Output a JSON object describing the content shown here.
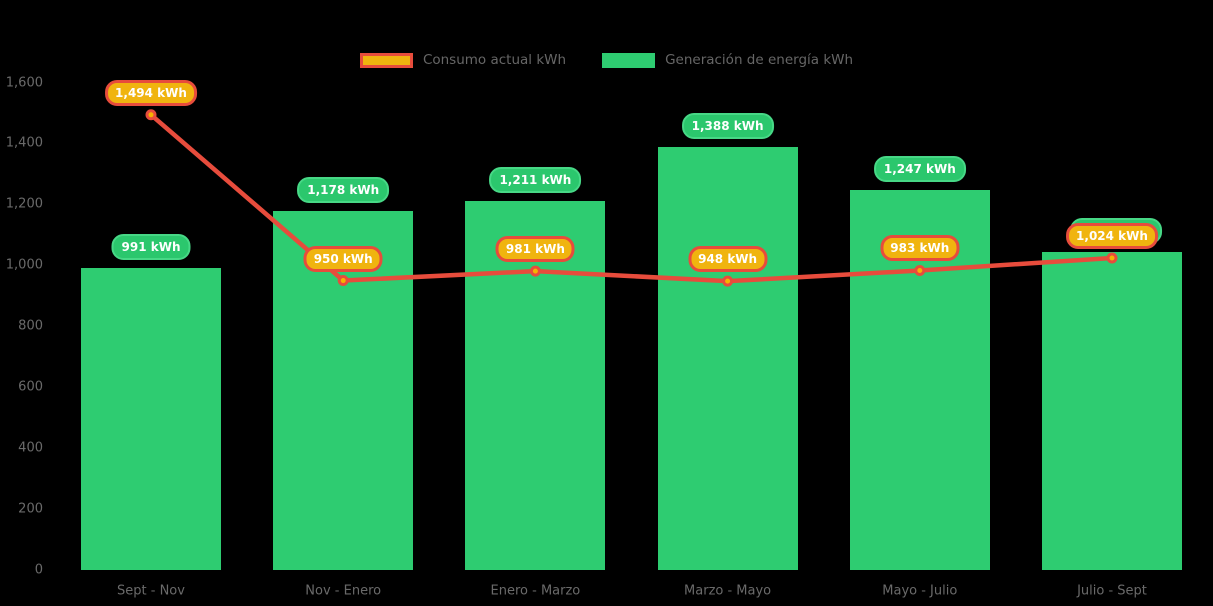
{
  "page": {
    "background": "#000000"
  },
  "chart_data": {
    "type": "combo",
    "title": "",
    "xlabel": "",
    "ylabel": "",
    "categories": [
      "Sept - Nov",
      "Nov - Enero",
      "Enero - Marzo",
      "Marzo - Mayo",
      "Mayo - Julio",
      "Julio - Sept"
    ],
    "series": [
      {
        "name": "Consumo actual kWh",
        "type": "line",
        "color": "#E74C3C",
        "marker_fill": "#F5B301",
        "label_fill": "#F0B40F",
        "label_border": "#E74C3C",
        "values": [
          1494,
          950,
          981,
          948,
          983,
          1024
        ],
        "labels": [
          "1,494 kWh",
          "950 kWh",
          "981 kWh",
          "948 kWh",
          "983 kWh",
          "1,024 kWh"
        ]
      },
      {
        "name": "Generación de energía kWh",
        "type": "bar",
        "color": "#2ECC71",
        "label_fill": "#2BC76D",
        "label_border": "#47D886",
        "values": [
          991,
          1178,
          1211,
          1388,
          1247,
          1044
        ],
        "labels": [
          "991 kWh",
          "1,178 kWh",
          "1,211 kWh",
          "1,388 kWh",
          "1,247 kWh",
          "1,044 kWh"
        ]
      }
    ],
    "ylim": [
      0,
      1600
    ],
    "ytick_interval": 200,
    "yticks": [
      {
        "label": "0",
        "value": 0
      },
      {
        "label": "200",
        "value": 200
      },
      {
        "label": "400",
        "value": 400
      },
      {
        "label": "600",
        "value": 600
      },
      {
        "label": "800",
        "value": 800
      },
      {
        "label": "1,000",
        "value": 1000
      },
      {
        "label": "1,200",
        "value": 1200
      },
      {
        "label": "1,400",
        "value": 1400
      },
      {
        "label": "1,600",
        "value": 1600
      }
    ],
    "grid": false,
    "legend_position": "top",
    "axis_text_color": "#6A6A6A",
    "legend_text_color": "#666666",
    "background": "#000000"
  }
}
